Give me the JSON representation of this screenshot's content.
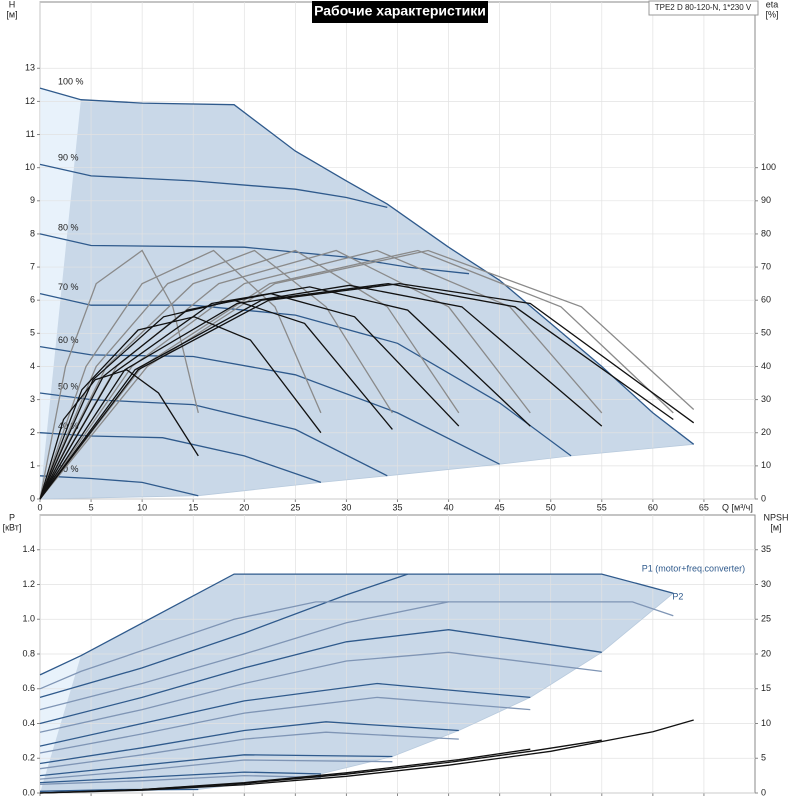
{
  "chart_data": [
    {
      "type": "line",
      "title": "Рабочие характеристики",
      "model": "TPE2 D 80-120-N, 1*230 V",
      "xlabel": "Q [м³/ч]",
      "ylabel": "H",
      "yunit": "[м]",
      "y2label": "eta",
      "y2unit": "[%]",
      "xlim": [
        0,
        70
      ],
      "xticks": [
        0,
        5,
        10,
        15,
        20,
        25,
        30,
        35,
        40,
        45,
        50,
        55,
        60,
        65
      ],
      "show_xtick_labels": true,
      "ylim": [
        0,
        15
      ],
      "yticks": [
        0,
        1,
        2,
        3,
        4,
        5,
        6,
        7,
        8,
        9,
        10,
        11,
        12,
        13
      ],
      "y2lim": [
        0,
        150
      ],
      "y2ticks": [
        0,
        10,
        20,
        30,
        40,
        50,
        60,
        70,
        80,
        90,
        100
      ],
      "grid": true,
      "series_labels": "start",
      "series": [
        {
          "name": "100 %",
          "color": "#2f5a8c",
          "x": [
            0,
            4,
            10,
            19,
            25,
            30,
            34,
            40,
            45,
            50,
            55,
            60,
            64
          ],
          "values": [
            12.4,
            12.05,
            11.95,
            11.9,
            10.5,
            9.6,
            8.9,
            7.6,
            6.6,
            5.3,
            4,
            2.6,
            1.65
          ]
        },
        {
          "name": "90 %",
          "color": "#2f5a8c",
          "x": [
            0,
            5,
            15,
            25,
            30,
            34
          ],
          "values": [
            10.1,
            9.75,
            9.6,
            9.35,
            9.1,
            8.8
          ]
        },
        {
          "name": "80 %",
          "color": "#2f5a8c",
          "x": [
            0,
            5,
            20,
            30,
            36,
            42
          ],
          "values": [
            8.0,
            7.65,
            7.6,
            7.3,
            7.0,
            6.8
          ]
        },
        {
          "name": "70 %",
          "color": "#2f5a8c",
          "x": [
            0,
            5,
            15,
            25,
            35,
            45,
            52
          ],
          "values": [
            6.2,
            5.85,
            5.85,
            5.55,
            4.7,
            2.9,
            1.3
          ]
        },
        {
          "name": "60 %",
          "color": "#2f5a8c",
          "x": [
            0,
            5,
            15,
            25,
            35,
            45
          ],
          "values": [
            4.6,
            4.35,
            4.3,
            3.75,
            2.6,
            1.05
          ]
        },
        {
          "name": "50 %",
          "color": "#2f5a8c",
          "x": [
            0,
            5,
            15,
            25,
            34
          ],
          "values": [
            3.2,
            3.0,
            2.85,
            2.1,
            0.7
          ]
        },
        {
          "name": "40 %",
          "color": "#2f5a8c",
          "x": [
            0,
            5,
            12,
            20,
            27.5
          ],
          "values": [
            2.0,
            1.9,
            1.85,
            1.3,
            0.5
          ]
        },
        {
          "name": "20 %",
          "color": "#2f5a8c",
          "x": [
            0,
            5,
            10,
            15.5
          ],
          "values": [
            0.7,
            0.62,
            0.5,
            0.1
          ]
        },
        {
          "axis": "y2",
          "color": "#8a8a8a",
          "x": [
            0,
            2.5,
            5.5,
            10,
            13,
            15.5
          ],
          "values": [
            0,
            40,
            65,
            75,
            58,
            26
          ]
        },
        {
          "axis": "y2",
          "color": "#8a8a8a",
          "x": [
            0,
            4.5,
            10,
            17,
            23,
            27.5
          ],
          "values": [
            0,
            40,
            65,
            75,
            58,
            26
          ]
        },
        {
          "axis": "y2",
          "color": "#8a8a8a",
          "x": [
            0,
            5.5,
            12.5,
            21,
            28,
            34.5
          ],
          "values": [
            0,
            40,
            65,
            75,
            58,
            26
          ]
        },
        {
          "axis": "y2",
          "color": "#8a8a8a",
          "x": [
            0,
            6.5,
            15,
            25,
            34,
            41
          ],
          "values": [
            0,
            40,
            65,
            75,
            58,
            26
          ]
        },
        {
          "axis": "y2",
          "color": "#8a8a8a",
          "x": [
            0,
            7.5,
            17.5,
            29,
            40,
            48
          ],
          "values": [
            0,
            40,
            65,
            75,
            58,
            26
          ]
        },
        {
          "axis": "y2",
          "color": "#8a8a8a",
          "x": [
            0,
            9,
            20,
            33,
            46,
            55
          ],
          "values": [
            0,
            40,
            65,
            75,
            58,
            26
          ]
        },
        {
          "axis": "y2",
          "color": "#8a8a8a",
          "x": [
            0,
            10,
            22.5,
            37,
            51,
            62
          ],
          "values": [
            0,
            40,
            65,
            75,
            58,
            26
          ]
        },
        {
          "axis": "y2",
          "color": "#8a8a8a",
          "x": [
            0,
            10.5,
            23,
            38,
            53,
            64
          ],
          "values": [
            0,
            40,
            65,
            75,
            58,
            27
          ]
        },
        {
          "axis": "y2",
          "color": "#111111",
          "x": [
            0,
            2.3,
            5.4,
            8.5,
            11.6,
            15.5
          ],
          "values": [
            0,
            24,
            36,
            39,
            32,
            13
          ]
        },
        {
          "axis": "y2",
          "color": "#111111",
          "x": [
            0,
            4.1,
            9.6,
            15.1,
            20.6,
            27.5
          ],
          "values": [
            0,
            33,
            51,
            55,
            48,
            20
          ]
        },
        {
          "axis": "y2",
          "color": "#111111",
          "x": [
            0,
            5.2,
            12.1,
            19,
            25.9,
            34.5
          ],
          "values": [
            0,
            36,
            55,
            60,
            53,
            21
          ]
        },
        {
          "axis": "y2",
          "color": "#111111",
          "x": [
            0,
            6.2,
            14.4,
            22.6,
            30.8,
            41
          ],
          "values": [
            0,
            37,
            57,
            62,
            55,
            22
          ]
        },
        {
          "axis": "y2",
          "color": "#111111",
          "x": [
            0,
            7.2,
            16.8,
            26.4,
            36,
            48
          ],
          "values": [
            0,
            38,
            59,
            64,
            57,
            22
          ]
        },
        {
          "axis": "y2",
          "color": "#111111",
          "x": [
            0,
            8.3,
            19.3,
            30.3,
            41.3,
            55
          ],
          "values": [
            0,
            39,
            59,
            64.5,
            58,
            22
          ]
        },
        {
          "axis": "y2",
          "color": "#111111",
          "x": [
            0,
            9.3,
            21.7,
            34.1,
            46.5,
            62
          ],
          "values": [
            0,
            39,
            60,
            65,
            58,
            24
          ]
        },
        {
          "axis": "y2",
          "color": "#111111",
          "x": [
            0,
            9.6,
            22.4,
            35.2,
            48,
            64
          ],
          "values": [
            0,
            39,
            60,
            65,
            59,
            23
          ]
        }
      ]
    },
    {
      "type": "line",
      "ylabel": "P",
      "yunit": "[кВт]",
      "y2label": "NPSH",
      "y2unit": "[м]",
      "xlim": [
        0,
        70
      ],
      "xticks": [
        0,
        5,
        10,
        15,
        20,
        25,
        30,
        35,
        40,
        45,
        50,
        55,
        60,
        65
      ],
      "show_xtick_labels": false,
      "ylim": [
        0,
        1.6
      ],
      "yticks": [
        {
          "value": 0,
          "label": "0.0"
        },
        0.2,
        0.4,
        0.6,
        0.8,
        {
          "value": 1,
          "label": "1.0"
        },
        1.2,
        1.4
      ],
      "y2lim": [
        0,
        40
      ],
      "y2ticks": [
        0,
        5,
        10,
        15,
        20,
        25,
        30,
        35
      ],
      "grid": true,
      "series_labels": "end",
      "series": [
        {
          "name": "P1 (motor+freq.converter)",
          "color": "#2f5a8c",
          "x": [
            0,
            4,
            19,
            55,
            62
          ],
          "values": [
            0.68,
            0.79,
            1.26,
            1.26,
            1.15
          ]
        },
        {
          "color": "#2f5a8c",
          "x": [
            0,
            10,
            20,
            30,
            36
          ],
          "values": [
            0.55,
            0.72,
            0.92,
            1.14,
            1.26
          ]
        },
        {
          "color": "#2f5a8c",
          "x": [
            0,
            10,
            20,
            30,
            40,
            55
          ],
          "values": [
            0.4,
            0.55,
            0.72,
            0.87,
            0.94,
            0.81
          ]
        },
        {
          "color": "#2f5a8c",
          "x": [
            0,
            10,
            20,
            33,
            48
          ],
          "values": [
            0.27,
            0.4,
            0.53,
            0.63,
            0.55
          ]
        },
        {
          "color": "#2f5a8c",
          "x": [
            0,
            10,
            20,
            28,
            41
          ],
          "values": [
            0.17,
            0.26,
            0.36,
            0.41,
            0.36
          ]
        },
        {
          "color": "#2f5a8c",
          "x": [
            0,
            10,
            20,
            34.5
          ],
          "values": [
            0.1,
            0.16,
            0.22,
            0.21
          ]
        },
        {
          "color": "#2f5a8c",
          "x": [
            0,
            10,
            20,
            27.5
          ],
          "values": [
            0.06,
            0.09,
            0.12,
            0.11
          ]
        },
        {
          "color": "#2f5a8c",
          "x": [
            0,
            8,
            15.5
          ],
          "values": [
            0.01,
            0.02,
            0.02
          ]
        },
        {
          "name": "P2",
          "color": "#7f95b5",
          "x": [
            0,
            4,
            19,
            27,
            58,
            62
          ],
          "values": [
            0.6,
            0.7,
            1.0,
            1.1,
            1.1,
            1.02
          ]
        },
        {
          "color": "#7f95b5",
          "x": [
            0,
            10,
            20,
            30,
            40
          ],
          "values": [
            0.48,
            0.63,
            0.8,
            0.98,
            1.1
          ]
        },
        {
          "color": "#7f95b5",
          "x": [
            0,
            10,
            20,
            30,
            40,
            55
          ],
          "values": [
            0.35,
            0.48,
            0.63,
            0.76,
            0.81,
            0.7
          ]
        },
        {
          "color": "#7f95b5",
          "x": [
            0,
            10,
            20,
            33,
            48
          ],
          "values": [
            0.23,
            0.34,
            0.46,
            0.55,
            0.48
          ]
        },
        {
          "color": "#7f95b5",
          "x": [
            0,
            10,
            20,
            28,
            41
          ],
          "values": [
            0.14,
            0.22,
            0.31,
            0.35,
            0.31
          ]
        },
        {
          "color": "#7f95b5",
          "x": [
            0,
            10,
            20,
            34.5
          ],
          "values": [
            0.08,
            0.13,
            0.19,
            0.18
          ]
        },
        {
          "color": "#7f95b5",
          "x": [
            0,
            10,
            20,
            27.5
          ],
          "values": [
            0.05,
            0.07,
            0.1,
            0.09
          ]
        },
        {
          "axis": "y2",
          "color": "#111111",
          "x": [
            0,
            10,
            20,
            30,
            40,
            50,
            60,
            64
          ],
          "values": [
            0,
            0.4,
            1.2,
            2.4,
            4,
            6,
            8.8,
            10.5
          ]
        },
        {
          "axis": "y2",
          "color": "#111111",
          "x": [
            0,
            10,
            20,
            30,
            40,
            48,
            55
          ],
          "values": [
            0,
            0.5,
            1.4,
            2.7,
            4.4,
            6,
            7.6
          ]
        },
        {
          "axis": "y2",
          "color": "#111111",
          "x": [
            0,
            10,
            20,
            30,
            41,
            48
          ],
          "values": [
            0,
            0.5,
            1.5,
            2.9,
            4.8,
            6.3
          ]
        }
      ]
    }
  ]
}
